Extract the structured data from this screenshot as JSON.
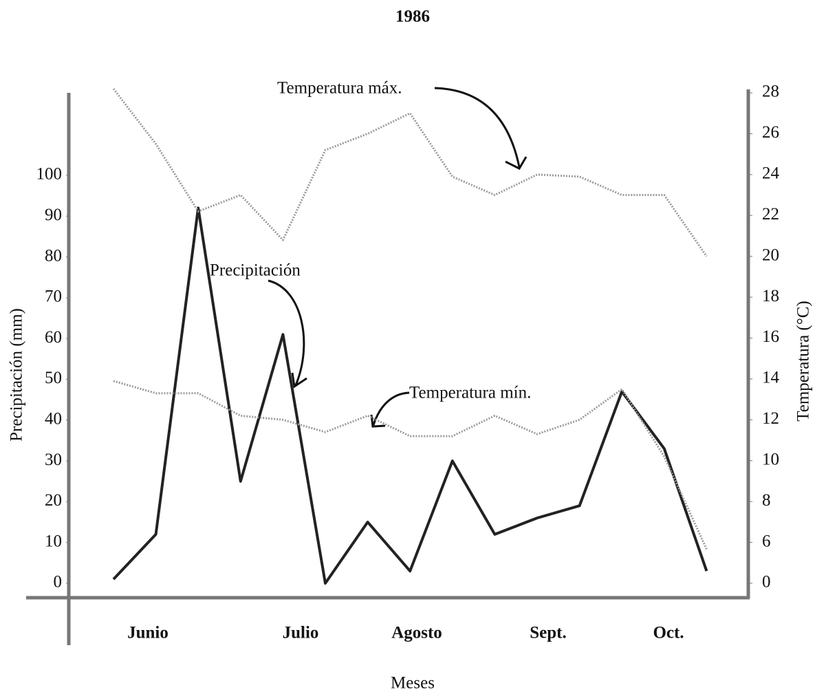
{
  "chart_data": {
    "type": "line",
    "title": "1986",
    "x_label": "Meses",
    "y_label": "Precipitación (mm)",
    "y2_label": "Temperatura (°C)",
    "months": [
      "Junio",
      "Julio",
      "Agosto",
      "Sept.",
      "Oct."
    ],
    "series": [
      {
        "name": "Precipitación",
        "color": "#222222",
        "values": [
          1,
          12,
          92,
          25,
          61,
          0,
          15,
          3,
          30,
          12,
          16,
          19,
          47,
          33,
          3
        ]
      },
      {
        "name": "Temperatura máx.",
        "color": "#9a9a9a",
        "axis": "y2",
        "values": [
          28.2,
          25.5,
          22.2,
          23,
          20.8,
          25.2,
          26,
          27,
          23.9,
          23,
          24,
          23.9,
          23,
          23,
          20
        ]
      },
      {
        "name": "Temperatura mín.",
        "color": "#9a9a9a",
        "axis": "y2",
        "values": [
          13.9,
          13.3,
          13.3,
          12.2,
          12,
          11.4,
          12.2,
          11.2,
          11.2,
          12.2,
          11.3,
          12,
          13.5,
          10.2,
          5
        ]
      }
    ],
    "ylim": [
      0,
      100
    ],
    "yticks": [
      0,
      10,
      20,
      30,
      40,
      50,
      60,
      70,
      80,
      90,
      100
    ],
    "y2lim": [
      0,
      28
    ],
    "y2ticks": [
      0,
      6,
      8,
      10,
      12,
      14,
      16,
      18,
      20,
      22,
      24,
      26,
      28
    ]
  }
}
